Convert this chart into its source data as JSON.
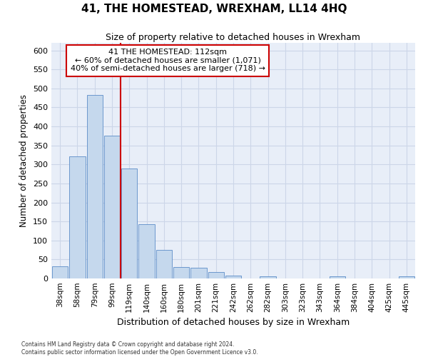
{
  "title": "41, THE HOMESTEAD, WREXHAM, LL14 4HQ",
  "subtitle": "Size of property relative to detached houses in Wrexham",
  "xlabel": "Distribution of detached houses by size in Wrexham",
  "ylabel": "Number of detached properties",
  "categories": [
    "38sqm",
    "58sqm",
    "79sqm",
    "99sqm",
    "119sqm",
    "140sqm",
    "160sqm",
    "180sqm",
    "201sqm",
    "221sqm",
    "242sqm",
    "262sqm",
    "282sqm",
    "303sqm",
    "323sqm",
    "343sqm",
    "364sqm",
    "384sqm",
    "404sqm",
    "425sqm",
    "445sqm"
  ],
  "values": [
    32,
    322,
    483,
    375,
    290,
    143,
    75,
    31,
    28,
    16,
    8,
    0,
    5,
    0,
    0,
    0,
    5,
    0,
    0,
    0,
    5
  ],
  "bar_color": "#c5d8ed",
  "bar_edge_color": "#5b8cc8",
  "grid_color": "#ccd6e8",
  "background_color": "#e8eef8",
  "property_label": "41 THE HOMESTEAD: 112sqm",
  "annotation_line1": "← 60% of detached houses are smaller (1,071)",
  "annotation_line2": "40% of semi-detached houses are larger (718) →",
  "redline_bar_index": 4,
  "annotation_box_color": "#ffffff",
  "annotation_box_edge": "#cc0000",
  "redline_color": "#cc0000",
  "footer1": "Contains HM Land Registry data © Crown copyright and database right 2024.",
  "footer2": "Contains public sector information licensed under the Open Government Licence v3.0.",
  "ylim": [
    0,
    620
  ],
  "yticks": [
    0,
    50,
    100,
    150,
    200,
    250,
    300,
    350,
    400,
    450,
    500,
    550,
    600
  ]
}
